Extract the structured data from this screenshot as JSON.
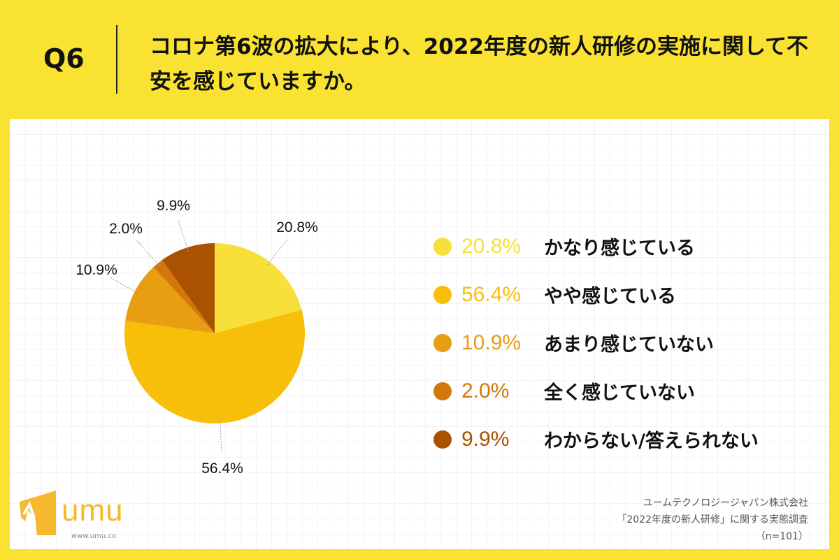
{
  "header": {
    "question": "Q6",
    "title": "コロナ第6波の拡大により、2022年度の新人研修の実施に関して不安を感じていますか。"
  },
  "chart_data": {
    "type": "pie",
    "start": "top",
    "direction": "clockwise",
    "slices": [
      {
        "label": "かなり感じている",
        "value": 20.8,
        "display": "20.8%",
        "color": "#F8E03A"
      },
      {
        "label": "やや感じている",
        "value": 56.4,
        "display": "56.4%",
        "color": "#F7BE0A"
      },
      {
        "label": "あまり感じていない",
        "value": 10.9,
        "display": "10.9%",
        "color": "#E89E12"
      },
      {
        "label": "全く感じていない",
        "value": 2.0,
        "display": "2.0%",
        "color": "#D4770B"
      },
      {
        "label": "わからない/答えられない",
        "value": 9.9,
        "display": "9.9%",
        "color": "#AB5200"
      }
    ],
    "legend_position": "right"
  },
  "source": {
    "line1": "ユームテクノロジージャパン株式会社",
    "line2": "「2022年度の新人研修」に関する実態調査",
    "line3": "（n=101）"
  },
  "logo": {
    "text": "umu",
    "url_text": "www.umu.co"
  }
}
